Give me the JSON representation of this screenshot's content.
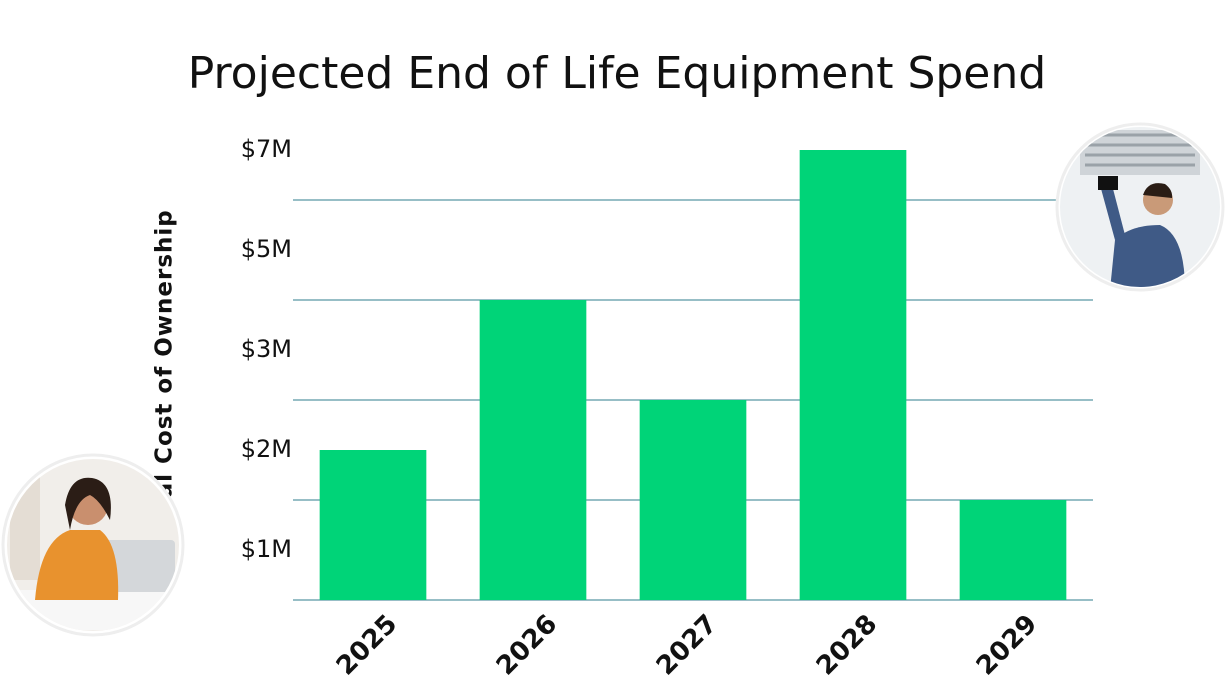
{
  "chart_data": {
    "type": "bar",
    "title": "Projected End of Life Equipment Spend",
    "y_label": "Total Cost of Ownership",
    "categories": [
      "2025",
      "2026",
      "2027",
      "2028",
      "2029"
    ],
    "values": [
      2,
      4,
      2.5,
      7,
      1.5
    ],
    "color": "#00d478",
    "ylim": [
      0.5,
      7
    ],
    "yticks": [
      {
        "value": 1,
        "label": "$1M"
      },
      {
        "value": 2,
        "label": "$2M"
      },
      {
        "value": 3,
        "label": "$3M"
      },
      {
        "value": 5,
        "label": "$5M"
      },
      {
        "value": 7,
        "label": "$7M"
      }
    ],
    "grid": true
  }
}
